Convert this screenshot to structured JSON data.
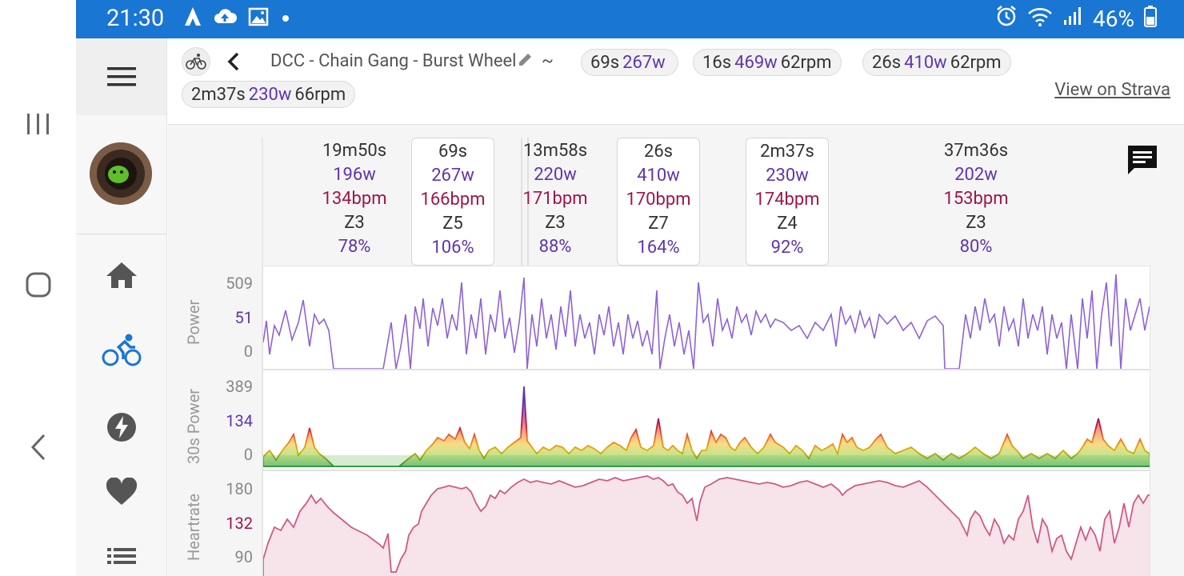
{
  "status_bar": {
    "time": "21:30",
    "battery": "46%",
    "icons": [
      "strava-icon",
      "cloud-upload-icon",
      "image-icon",
      "dot-icon",
      "alarm-icon",
      "wifi-icon",
      "signal-icon",
      "battery-icon"
    ]
  },
  "system_nav": [
    "recent-apps-icon",
    "home-circle-icon",
    "back-chevron-icon"
  ],
  "drawer": {
    "items": [
      "menu-icon",
      "avatar",
      "home-icon",
      "bike-icon",
      "bolt-icon",
      "heart-icon",
      "list-icon"
    ],
    "active_color": "#1976d2"
  },
  "header": {
    "title": "DCC - Chain Gang - Burst Wheel",
    "separator": "~",
    "chips": [
      {
        "duration": "69s",
        "power": "267w",
        "cadence": ""
      },
      {
        "duration": "16s",
        "power": "469w",
        "cadence": "62rpm"
      },
      {
        "duration": "26s",
        "power": "410w",
        "cadence": "62rpm"
      },
      {
        "duration": "2m37s",
        "power": "230w",
        "cadence": "66rpm"
      }
    ],
    "strava_link": "View on Strava"
  },
  "segments": [
    {
      "duration": "19m50s",
      "power": "196w",
      "hr": "134bpm",
      "zone": "Z3",
      "pct": "78%",
      "selected": false
    },
    {
      "duration": "69s",
      "power": "267w",
      "hr": "166bpm",
      "zone": "Z5",
      "pct": "106%",
      "selected": true
    },
    {
      "duration": "13m58s",
      "power": "220w",
      "hr": "171bpm",
      "zone": "Z3",
      "pct": "88%",
      "selected": false
    },
    {
      "duration": "26s",
      "power": "410w",
      "hr": "170bpm",
      "zone": "Z7",
      "pct": "164%",
      "selected": true
    },
    {
      "duration": "2m37s",
      "power": "230w",
      "hr": "174bpm",
      "zone": "Z4",
      "pct": "92%",
      "selected": true
    },
    {
      "duration": "37m36s",
      "power": "202w",
      "hr": "153bpm",
      "zone": "Z3",
      "pct": "80%",
      "selected": false
    }
  ],
  "charts": {
    "power": {
      "label": "Power",
      "ticks": [
        "509",
        "51",
        "0"
      ],
      "mid_color": "#5e35b1",
      "line_color": "#8e63d6"
    },
    "power30": {
      "label": "30s Power",
      "ticks": [
        "389",
        "134",
        "0"
      ],
      "mid_color": "#5e35b1"
    },
    "heartrate": {
      "label": "Heartrate",
      "ticks": [
        "180",
        "132",
        "90"
      ],
      "mid_color": "#a0154a",
      "line_color": "#d05a85"
    }
  }
}
